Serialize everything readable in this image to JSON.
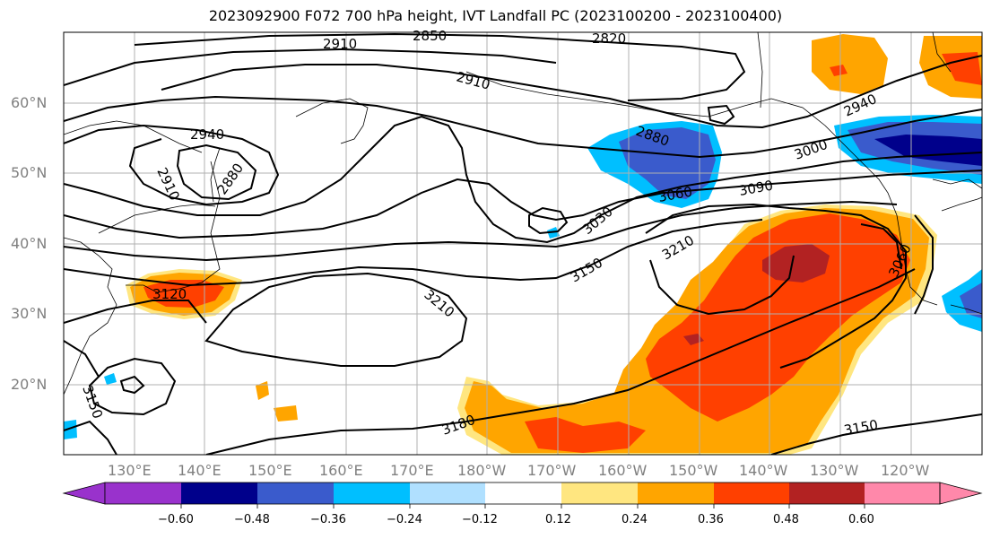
{
  "title": "2023092900 F072 700 hPa height, IVT Landfall PC (2023100200 - 2023100400)",
  "lat_labels": [
    "60°N",
    "50°N",
    "40°N",
    "30°N",
    "20°N"
  ],
  "lon_labels": [
    "130°E",
    "140°E",
    "150°E",
    "160°E",
    "170°E",
    "180°W",
    "170°W",
    "160°W",
    "150°W",
    "140°W",
    "130°W",
    "120°W"
  ],
  "contour_labels": [
    "2910",
    "2850",
    "2820",
    "2910",
    "2940",
    "2880",
    "2910",
    "2880",
    "3030",
    "3060",
    "3090",
    "3000",
    "2940",
    "3150",
    "3210",
    "3120",
    "3210",
    "3150",
    "3180",
    "3060",
    "3150"
  ],
  "colorbar": {
    "tick_labels": [
      "−0.60",
      "−0.48",
      "−0.36",
      "−0.24",
      "−0.12",
      "0.12",
      "0.24",
      "0.36",
      "0.48",
      "0.60"
    ],
    "colors": [
      "#9932CC",
      "#00008B",
      "#3A5BCC",
      "#00BFFF",
      "#B0E0FF",
      "#FFFFFF",
      "#FFE680",
      "#FFA500",
      "#FF4000",
      "#B22222",
      "#FF88AA"
    ]
  }
}
